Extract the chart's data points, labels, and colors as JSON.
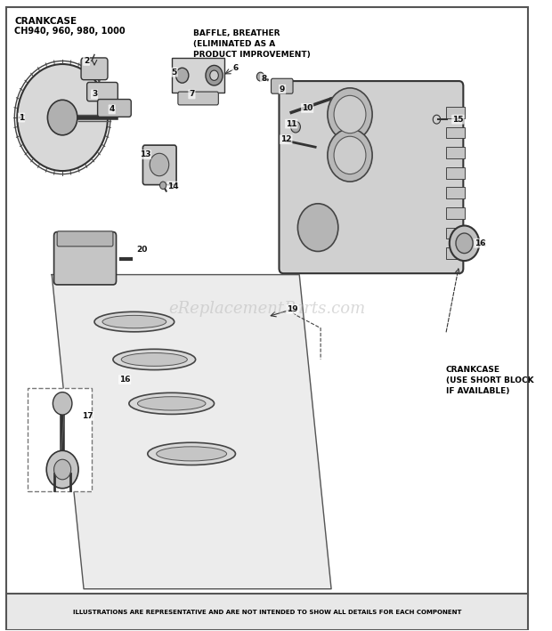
{
  "title_line1": "CRANKCASE",
  "title_line2": "CH940, 960, 980, 1000",
  "baffle_label": "BAFFLE, BREATHER\n(ELIMINATED AS A\nPRODUCT IMPROVEMENT)",
  "crankcase_label": "CRANKCASE\n(USE SHORT BLOCK\nIF AVAILABLE)",
  "footer": "ILLUSTRATIONS ARE REPRESENTATIVE AND ARE NOT INTENDED TO SHOW ALL DETAILS FOR EACH COMPONENT",
  "watermark": "eReplacementParts.com",
  "bg_color": "#ffffff",
  "border_color": "#cccccc",
  "text_color": "#000000",
  "footer_bg": "#e8e8e8",
  "figsize": [
    6.2,
    7.09
  ],
  "dpi": 100
}
